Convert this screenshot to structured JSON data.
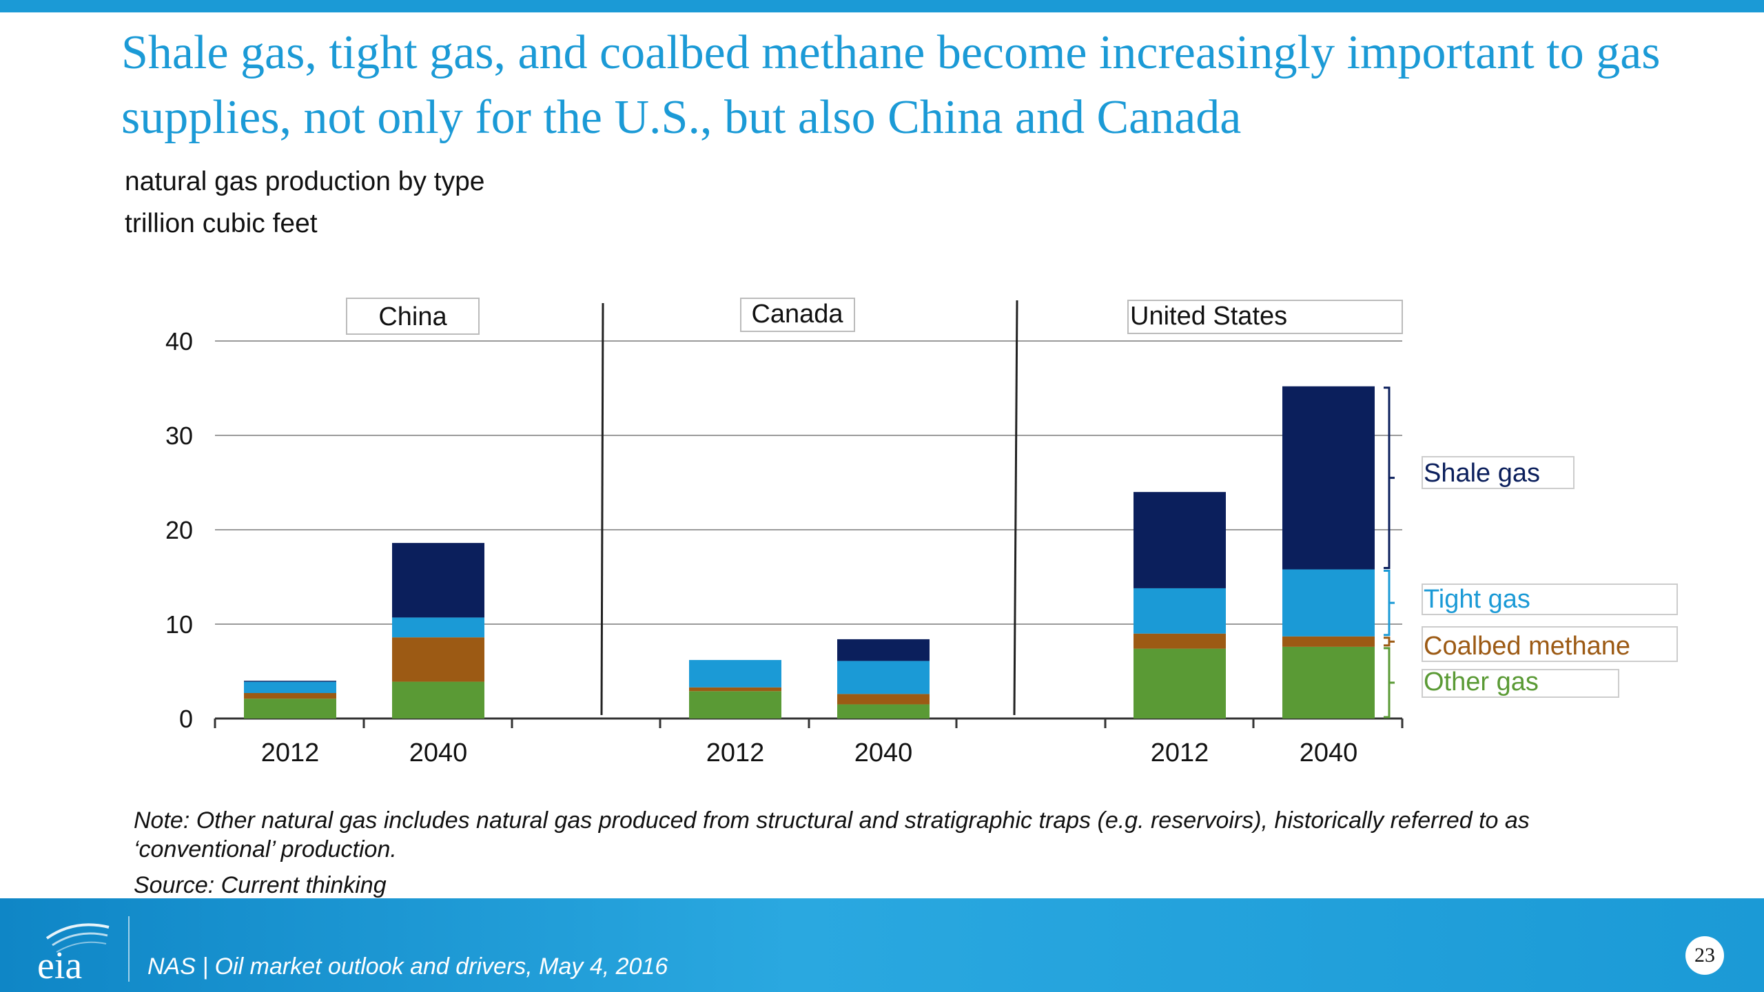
{
  "title": "Shale gas, tight gas, and coalbed methane become increasingly important to gas supplies, not only for the U.S., but also China and Canada",
  "subtitle_line1": "natural gas production by type",
  "subtitle_line2": "trillion cubic feet",
  "note": "Note: Other natural gas includes natural gas produced from structural and stratigraphic traps (e.g. reservoirs), historically referred to as ‘conventional’ production.",
  "source": "Source: Current thinking",
  "footer": {
    "logo_text": "eia",
    "text": "NAS | Oil market outlook and drivers, May 4, 2016",
    "page_number": "23"
  },
  "colors": {
    "title": "#1b9ad6",
    "shale": "#0b1f5c",
    "tight": "#1b9ad6",
    "coalbed": "#9c5a14",
    "other": "#5a9a35"
  },
  "chart_data": {
    "type": "bar",
    "stacked": true,
    "ylim": [
      0,
      40
    ],
    "yticks": [
      "0",
      "10",
      "20",
      "30",
      "40"
    ],
    "groups": [
      "China",
      "Canada",
      "United States"
    ],
    "categories": [
      "2012",
      "2040",
      "2012",
      "2040",
      "2012",
      "2040"
    ],
    "category_group": [
      0,
      0,
      1,
      1,
      2,
      2
    ],
    "series": [
      {
        "name": "Other gas",
        "color": "#5a9a35",
        "values": [
          2.1,
          3.9,
          2.9,
          1.5,
          7.4,
          7.6
        ]
      },
      {
        "name": "Coalbed methane",
        "color": "#9c5a14",
        "values": [
          0.6,
          4.7,
          0.4,
          1.1,
          1.6,
          1.1
        ]
      },
      {
        "name": "Tight gas",
        "color": "#1b9ad6",
        "values": [
          1.2,
          2.1,
          2.9,
          3.5,
          4.8,
          7.1
        ]
      },
      {
        "name": "Shale gas",
        "color": "#0b1f5c",
        "values": [
          0.1,
          7.9,
          0.0,
          2.3,
          10.2,
          19.4
        ]
      }
    ],
    "legend_placement": "right"
  }
}
